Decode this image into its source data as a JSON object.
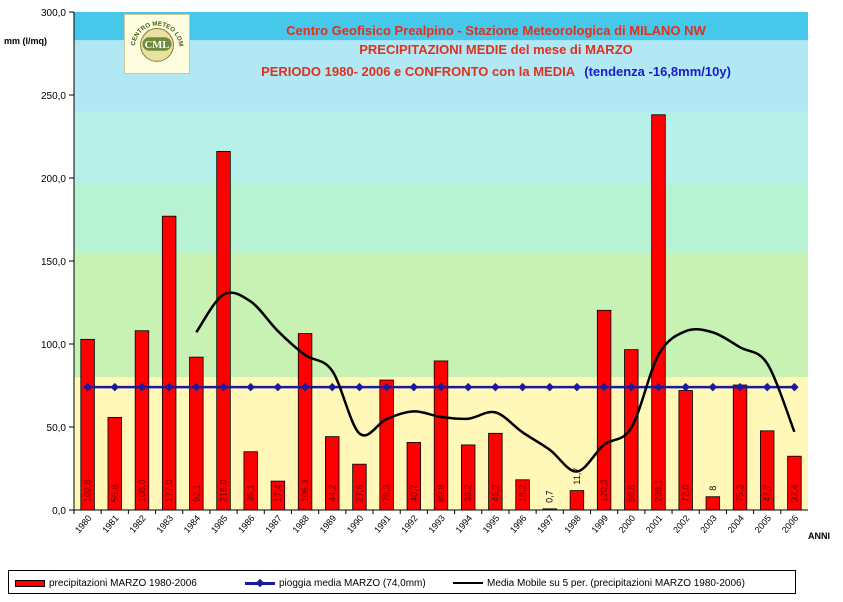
{
  "title_lines": [
    "Centro Geofisico Prealpino - Stazione Meteorologica di MILANO NW",
    "PRECIPITAZIONI MEDIE del mese di MARZO",
    "PERIODO 1980- 2006 e CONFRONTO con la MEDIA"
  ],
  "title_trend": "(tendenza -16,8mm/10y)",
  "logo_text": "CENTRO METEO LOMBARDO",
  "logo_mark": "CML",
  "colors": {
    "bar": "#ff0000",
    "mean_line": "#1a1aa0",
    "moving_avg": "#000000",
    "title": "#e0301e",
    "trend": "#1a1acc",
    "bands": [
      "#fff8b8",
      "#c8f2b4",
      "#b7f3d2",
      "#b6f0e8",
      "#b1e8f4",
      "#46c8ea"
    ]
  },
  "chart_data": {
    "type": "bar",
    "xlabel": "ANNI",
    "ylabel": "mm (l/mq)",
    "ylim": [
      0,
      300
    ],
    "yticks": [
      "0,0",
      "50,0",
      "100,0",
      "150,0",
      "200,0",
      "250,0",
      "300,0"
    ],
    "categories": [
      "1980",
      "1981",
      "1982",
      "1983",
      "1984",
      "1985",
      "1986",
      "1987",
      "1988",
      "1989",
      "1990",
      "1991",
      "1992",
      "1993",
      "1994",
      "1995",
      "1996",
      "1997",
      "1998",
      "1999",
      "2000",
      "2001",
      "2002",
      "2003",
      "2004",
      "2005",
      "2006"
    ],
    "series": [
      {
        "name": "precipitazioni MARZO 1980-2006",
        "type": "bar",
        "values": [
          102.8,
          55.8,
          108.0,
          177.0,
          92.1,
          216.0,
          35.1,
          17.4,
          106.3,
          44.2,
          27.6,
          78.3,
          40.7,
          89.8,
          39.2,
          46.2,
          18.2,
          0.7,
          11.7,
          120.3,
          96.6,
          238.1,
          72.0,
          8.0,
          75.3,
          47.7,
          32.4
        ],
        "labels": [
          "102,8",
          "55,8",
          "108,0",
          "177,0",
          "92,1",
          "216,0",
          "35,1",
          "17,4",
          "106,3",
          "44,2",
          "27,6",
          "78,3",
          "40,7",
          "89,8",
          "39,2",
          "46,2",
          "18,2",
          "0,7",
          "11,7",
          "120,3",
          "96,6",
          "238,1",
          "72,0",
          "8",
          "75,3",
          "47,7",
          "32,4"
        ]
      },
      {
        "name": "pioggia media MARZO (74,0mm)",
        "type": "line",
        "values": [
          74.0,
          74.0,
          74.0,
          74.0,
          74.0,
          74.0,
          74.0,
          74.0,
          74.0,
          74.0,
          74.0,
          74.0,
          74.0,
          74.0,
          74.0,
          74.0,
          74.0,
          74.0,
          74.0,
          74.0,
          74.0,
          74.0,
          74.0,
          74.0,
          74.0,
          74.0,
          74.0
        ]
      },
      {
        "name": "Media Mobile su 5 per. (precipitazioni MARZO 1980-2006)",
        "type": "line",
        "values": [
          null,
          null,
          null,
          null,
          107.1,
          129.8,
          125.6,
          107.8,
          93.4,
          83.8,
          46.1,
          54.8,
          59.4,
          56.1,
          55.0,
          58.8,
          46.8,
          36.3,
          23.2,
          39.3,
          49.5,
          93.5,
          107.7,
          107.0,
          98.0,
          88.2,
          47.1
        ]
      }
    ],
    "grid": false,
    "legend_position": "bottom"
  }
}
